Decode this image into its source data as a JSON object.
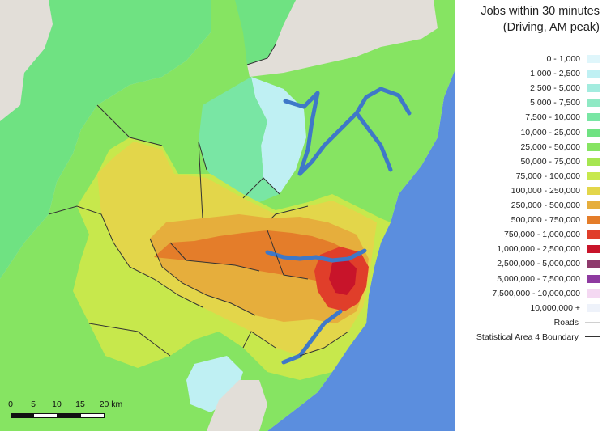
{
  "legend": {
    "title_line1": "Jobs within 30 minutes",
    "title_line2": "(Driving, AM peak)",
    "classes": [
      {
        "label": "0 - 1,000",
        "color": "#dff6fb"
      },
      {
        "label": "1,000 - 2,500",
        "color": "#bff0f3"
      },
      {
        "label": "2,500 - 5,000",
        "color": "#a3ecdf"
      },
      {
        "label": "5,000 - 7,500",
        "color": "#8fe9c4"
      },
      {
        "label": "7,500 - 10,000",
        "color": "#79e6a4"
      },
      {
        "label": "10,000 - 25,000",
        "color": "#6fe282"
      },
      {
        "label": "25,000 - 50,000",
        "color": "#86e462"
      },
      {
        "label": "50,000 - 75,000",
        "color": "#a6e650"
      },
      {
        "label": "75,000 - 100,000",
        "color": "#c7e84c"
      },
      {
        "label": "100,000 - 250,000",
        "color": "#e3d64a"
      },
      {
        "label": "250,000 - 500,000",
        "color": "#e6ae3c"
      },
      {
        "label": "500,000 - 750,000",
        "color": "#e47d2a"
      },
      {
        "label": "750,000 - 1,000,000",
        "color": "#e03e2a"
      },
      {
        "label": "1,000,000 - 2,500,000",
        "color": "#c8142a"
      },
      {
        "label": "2,500,000 - 5,000,000",
        "color": "#8e3a6c"
      },
      {
        "label": "5,000,000 - 7,500,000",
        "color": "#8e3aa0"
      },
      {
        "label": "7,500,000 - 10,000,000",
        "color": "#f4d8f2"
      },
      {
        "label": "10,000,000 +",
        "color": "#eef2fa"
      }
    ],
    "roads_label": "Roads",
    "roads_color": "#d0d0d0",
    "boundary_label": "Statistical Area 4 Boundary",
    "boundary_color": "#333333"
  },
  "scalebar": {
    "labels": [
      "0",
      "5",
      "10",
      "15",
      "20 km"
    ]
  },
  "map_colors": {
    "water": "#5b8ede",
    "land_outside": "#e2ded8",
    "harbour": "#3f78c8"
  }
}
